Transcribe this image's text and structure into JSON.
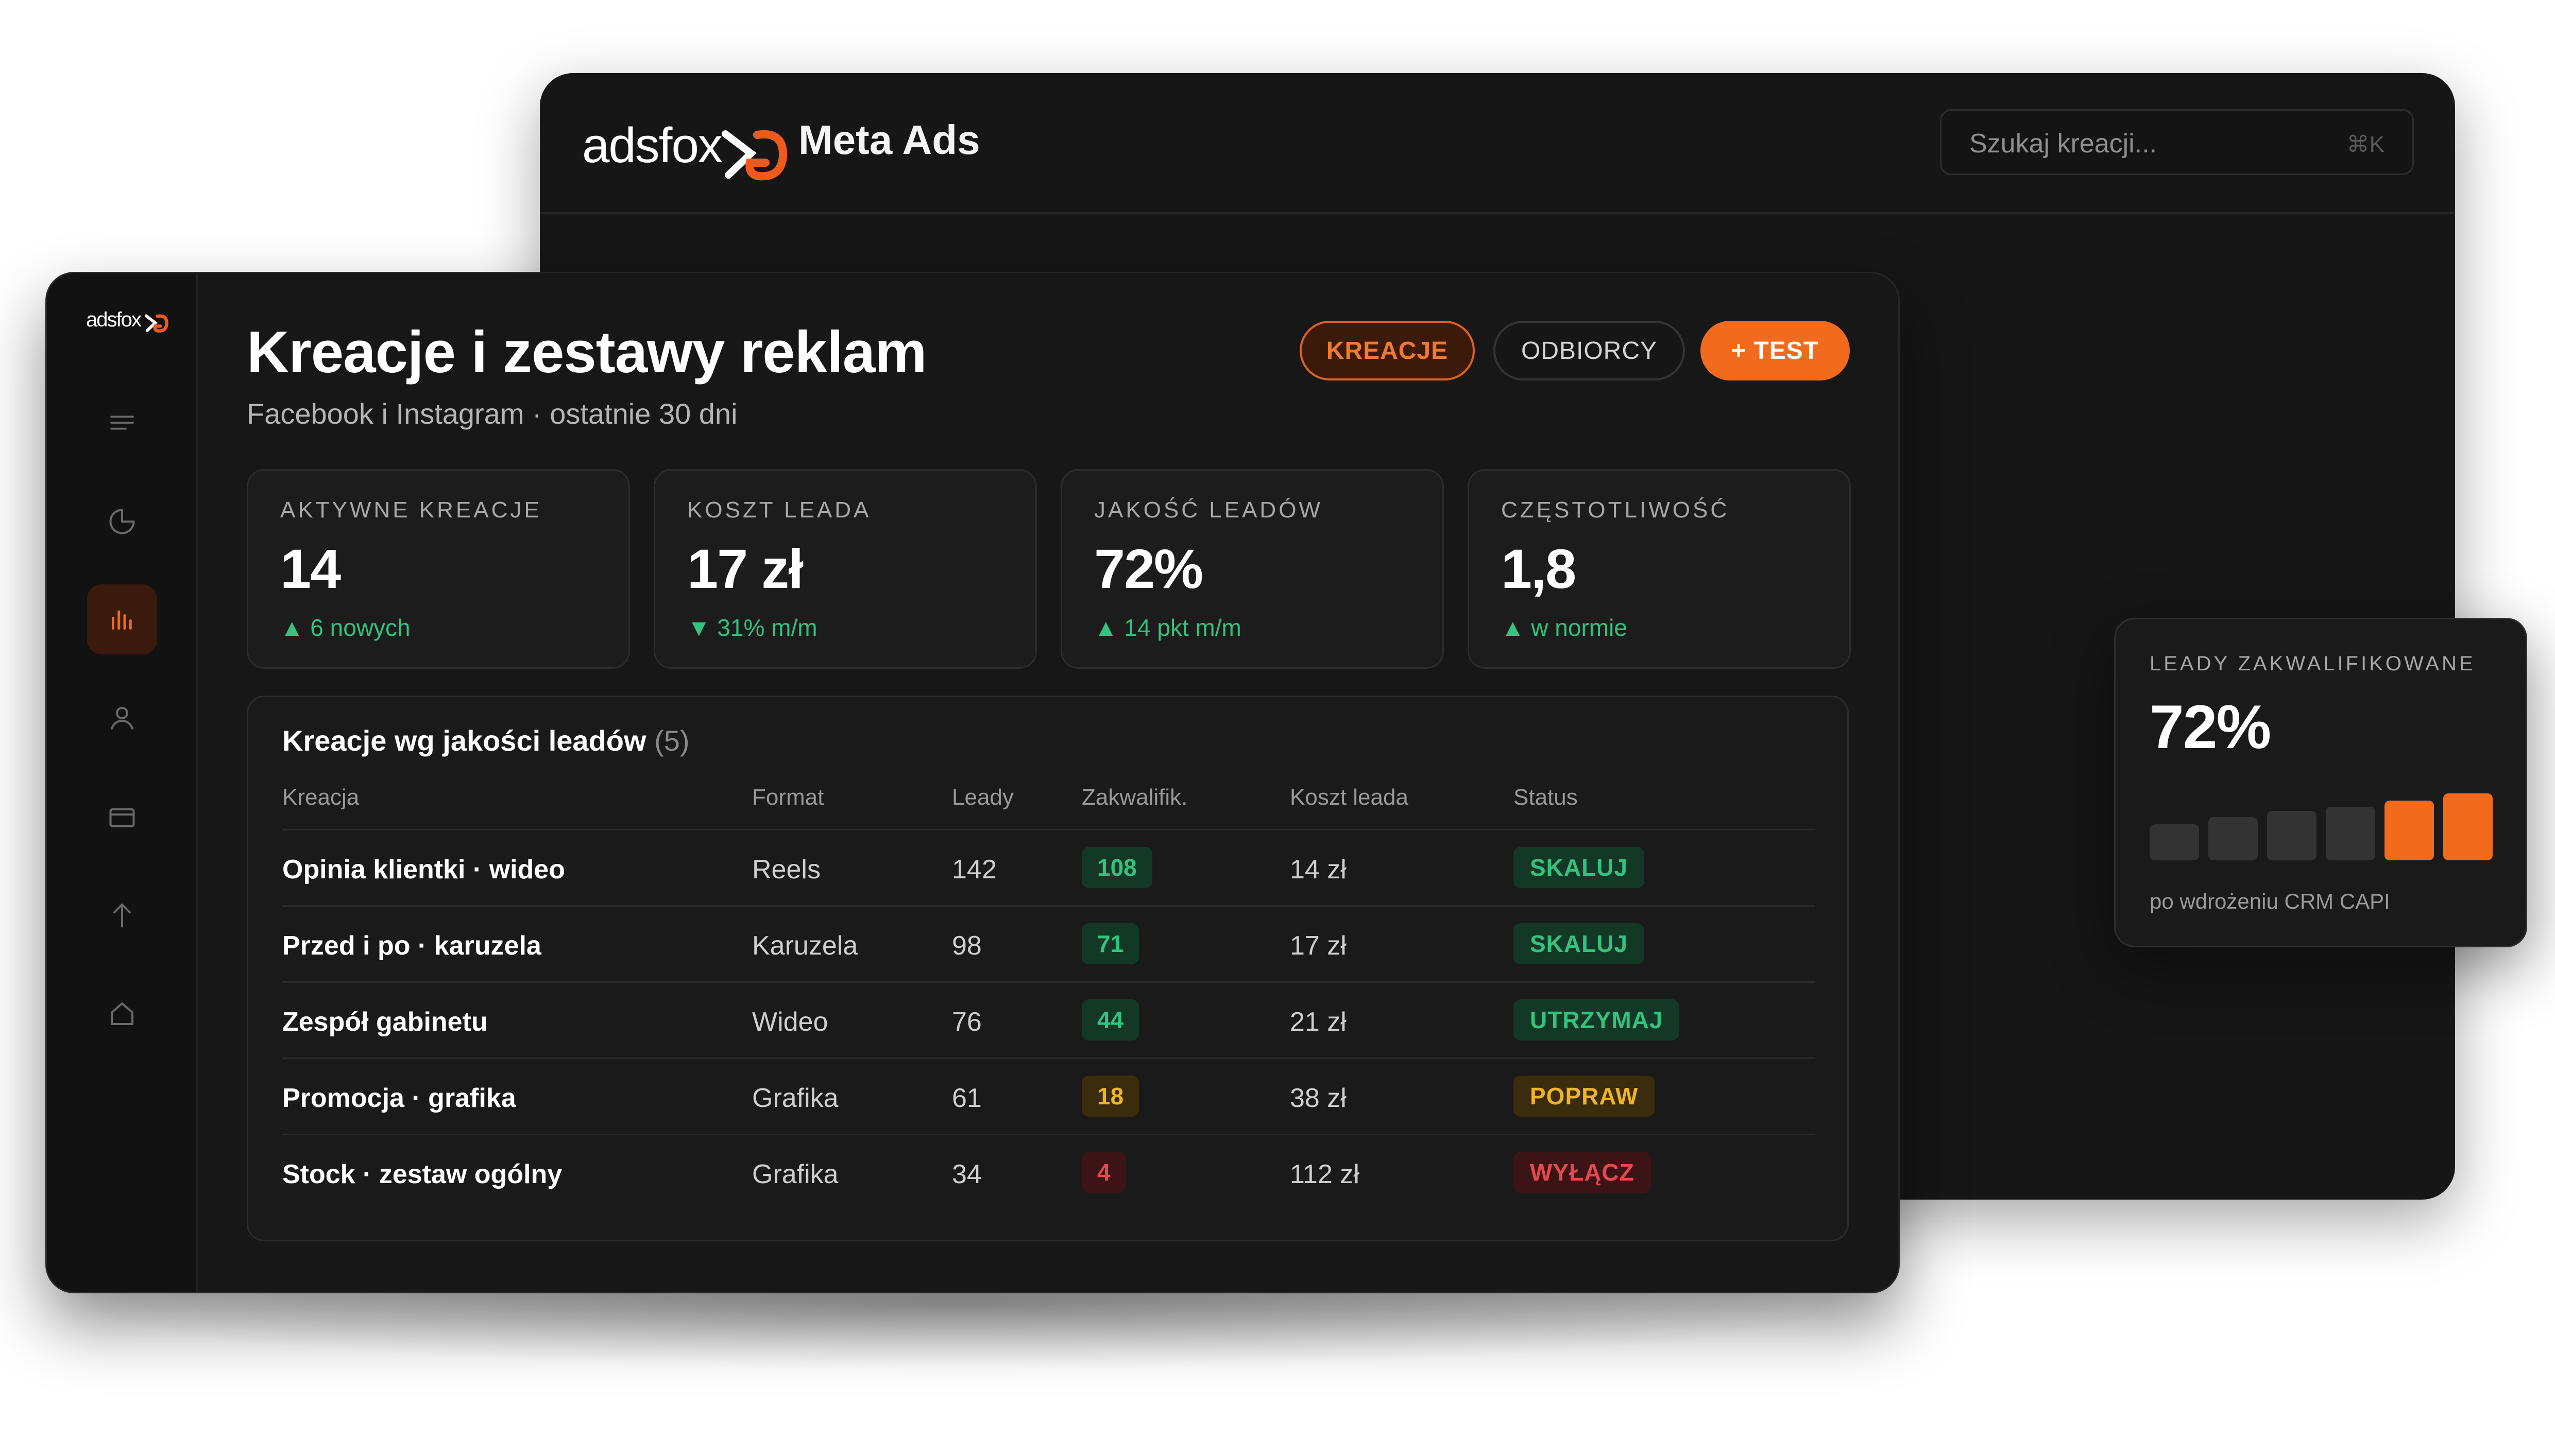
{
  "back_window": {
    "logo": "adsfox",
    "title": "Meta Ads",
    "search": {
      "placeholder": "Szukaj kreacji...",
      "shortcut": "⌘K"
    }
  },
  "front_window": {
    "logo": "adsfox",
    "sidebar_icons": [
      "menu-icon",
      "pie-chart-icon",
      "bar-chart-icon",
      "user-icon",
      "card-icon",
      "arrow-up-icon",
      "home-icon"
    ],
    "active_sidebar_index": 2,
    "title": "Kreacje i zestawy reklam",
    "subtitle": "Facebook i Instagram · ostatnie 30 dni",
    "buttons": {
      "kreacje": "KREACJE",
      "odbiorcy": "ODBIORCY",
      "test": "+ TEST"
    },
    "kpis": [
      {
        "label": "AKTYWNE KREACJE",
        "value": "14",
        "delta": "▲ 6 nowych"
      },
      {
        "label": "KOSZT LEADA",
        "value": "17 zł",
        "delta": "▼ 31% m/m"
      },
      {
        "label": "JAKOŚĆ LEADÓW",
        "value": "72%",
        "delta": "▲ 14 pkt m/m"
      },
      {
        "label": "CZĘSTOTLIWOŚĆ",
        "value": "1,8",
        "delta": "▲ w normie"
      }
    ],
    "table": {
      "title": "Kreacje wg jakości leadów",
      "count": "(5)",
      "headers": [
        "Kreacja",
        "Format",
        "Leady",
        "Zakwalifik.",
        "Koszt leada",
        "Status"
      ],
      "rows": [
        {
          "name": "Opinia klientki · wideo",
          "format": "Reels",
          "leads": "142",
          "qualified": "108",
          "cost": "14 zł",
          "status": "SKALUJ"
        },
        {
          "name": "Przed i po · karuzela",
          "format": "Karuzela",
          "leads": "98",
          "qualified": "71",
          "cost": "17 zł",
          "status": "SKALUJ"
        },
        {
          "name": "Zespół gabinetu",
          "format": "Wideo",
          "leads": "76",
          "qualified": "44",
          "cost": "21 zł",
          "status": "UTRZYMAJ"
        },
        {
          "name": "Promocja · grafika",
          "format": "Grafika",
          "leads": "61",
          "qualified": "18",
          "cost": "38 zł",
          "status": "POPRAW"
        },
        {
          "name": "Stock · zestaw ogólny",
          "format": "Grafika",
          "leads": "34",
          "qualified": "4",
          "cost": "112 zł",
          "status": "WYŁĄCZ"
        }
      ]
    }
  },
  "float_card": {
    "label": "LEADY ZAKWALIFIKOWANE",
    "value": "72%",
    "note": "po wdrożeniu CRM CAPI",
    "bars": [
      0.35,
      0.42,
      0.48,
      0.52,
      0.58,
      0.65
    ],
    "highlighted_bars": [
      4,
      5
    ]
  },
  "colors": {
    "accent": "#f26a1b",
    "green": "#33c27f",
    "green_bg": "#143826",
    "yellow": "#f0b429",
    "yellow_bg": "#3a2c0c",
    "red": "#e5484d",
    "red_bg": "#3d1416"
  }
}
